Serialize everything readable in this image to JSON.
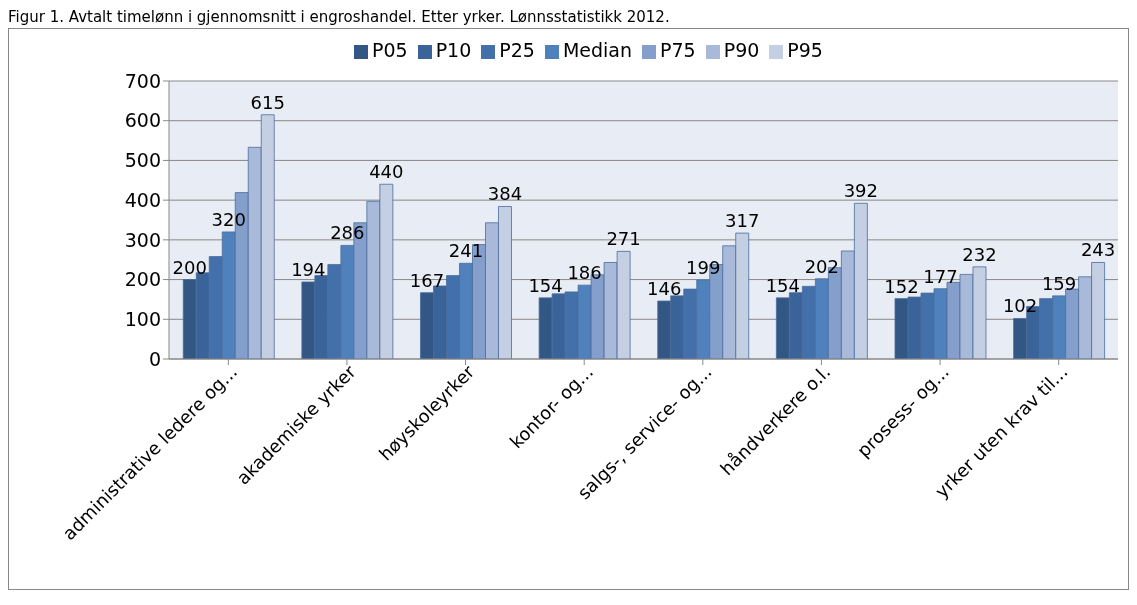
{
  "chart_data": {
    "type": "bar",
    "title": "Figur 1. Avtalt timelønn i gjennomsnitt i engroshandel. Etter yrker. Lønnsstatistikk 2012.",
    "categories": [
      "administrative ledere og...",
      "akademiske yrker",
      "høyskoleyrker",
      "kontor- og...",
      "salgs-, service- og...",
      "håndverkere o.l.",
      "prosess- og...",
      "yrker uten krav til..."
    ],
    "series": [
      {
        "name": "P05",
        "color": "#335784",
        "values": [
          200,
          194,
          167,
          154,
          146,
          154,
          152,
          102
        ],
        "value_labels": [
          "200",
          "194",
          "167",
          "154",
          "146",
          "154",
          "152",
          "102"
        ]
      },
      {
        "name": "P10",
        "color": "#3a6399",
        "values": [
          217,
          210,
          184,
          164,
          159,
          167,
          156,
          132
        ]
      },
      {
        "name": "P25",
        "color": "#4370aa",
        "values": [
          258,
          238,
          210,
          169,
          176,
          183,
          166,
          152
        ]
      },
      {
        "name": "Median",
        "color": "#4f81bd",
        "values": [
          320,
          286,
          241,
          186,
          199,
          202,
          177,
          159
        ],
        "value_labels": [
          "320",
          "286",
          "241",
          "186",
          "199",
          "202",
          "177",
          "159"
        ]
      },
      {
        "name": "P75",
        "color": "#849fcb",
        "values": [
          419,
          343,
          288,
          212,
          238,
          230,
          193,
          176
        ]
      },
      {
        "name": "P90",
        "color": "#a9b9d9",
        "values": [
          533,
          397,
          343,
          243,
          285,
          272,
          213,
          207
        ]
      },
      {
        "name": "P95",
        "color": "#c4cfe3",
        "values": [
          615,
          440,
          384,
          271,
          317,
          392,
          232,
          243
        ],
        "value_labels": [
          "615",
          "440",
          "384",
          "271",
          "317",
          "392",
          "232",
          "243"
        ]
      }
    ],
    "ylim": [
      0,
      700
    ],
    "yticks": [
      0,
      100,
      200,
      300,
      400,
      500,
      600,
      700
    ],
    "grid": "y",
    "legend": "top"
  }
}
